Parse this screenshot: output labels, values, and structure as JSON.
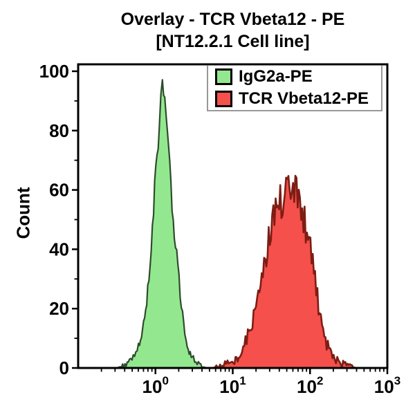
{
  "title": {
    "line1": "Overlay - TCR Vbeta12 - PE",
    "line2": "[NT12.2.1 Cell line]"
  },
  "axes": {
    "y": {
      "label": "Count",
      "min": 0,
      "max": 100,
      "major_ticks": [
        0,
        20,
        40,
        60,
        80,
        100
      ],
      "minor_ticks": [
        10,
        30,
        50,
        70,
        90
      ]
    },
    "x": {
      "scale": "log10",
      "base_label": "10",
      "major_tick_exponents": [
        0,
        1,
        2,
        3
      ],
      "min_exponent": -1,
      "max_exponent": 3,
      "minor_tick_multiples": [
        2,
        3,
        4,
        5,
        6,
        7,
        8,
        9
      ]
    }
  },
  "legend": {
    "position": "top-right",
    "entries": [
      {
        "label": "IgG2a-PE",
        "color": "#93e88f",
        "border": "#000000"
      },
      {
        "label": "TCR Vbeta12-PE",
        "color": "#f5504c",
        "border": "#000000"
      }
    ]
  },
  "colors": {
    "background": "#ffffff",
    "frame": "#000000",
    "green_fill": "#93e88f",
    "green_stroke": "#2e4b2c",
    "red_fill": "#f5504c",
    "red_stroke": "#7d1d14",
    "legend_border": "#989898"
  },
  "chart_data": {
    "type": "area",
    "subtype": "flow-cytometry-histogram-overlay",
    "title": "Overlay - TCR Vbeta12 - PE [NT12.2.1 Cell line]",
    "xlabel": "",
    "ylabel": "Count",
    "x_scale": "log10",
    "xlim": [
      0.1,
      1000
    ],
    "ylim": [
      0,
      100
    ],
    "grid": false,
    "legend_position": "top-right",
    "series": [
      {
        "name": "IgG2a-PE",
        "data_name": "histogram-igg2a-pe",
        "fill": "#93e88f",
        "stroke": "#2e4b2c",
        "stroke_width": 2.2,
        "noise": 0.45,
        "peak_x": 1.3,
        "peak_y": 95,
        "points_logx_count": [
          [
            -0.5,
            0
          ],
          [
            -0.44,
            0.6
          ],
          [
            -0.38,
            1.2
          ],
          [
            -0.32,
            2.5
          ],
          [
            -0.27,
            4
          ],
          [
            -0.22,
            7
          ],
          [
            -0.18,
            11
          ],
          [
            -0.14,
            17
          ],
          [
            -0.1,
            26
          ],
          [
            -0.07,
            36
          ],
          [
            -0.04,
            48
          ],
          [
            -0.01,
            60
          ],
          [
            0.02,
            72
          ],
          [
            0.05,
            82
          ],
          [
            0.07,
            88
          ],
          [
            0.09,
            93
          ],
          [
            0.105,
            95
          ],
          [
            0.12,
            87
          ],
          [
            0.14,
            80
          ],
          [
            0.17,
            71
          ],
          [
            0.2,
            61
          ],
          [
            0.23,
            51
          ],
          [
            0.26,
            42
          ],
          [
            0.29,
            33
          ],
          [
            0.32,
            25
          ],
          [
            0.35,
            18
          ],
          [
            0.38,
            12
          ],
          [
            0.41,
            8
          ],
          [
            0.45,
            5
          ],
          [
            0.49,
            3
          ],
          [
            0.54,
            1.5
          ],
          [
            0.6,
            0.6
          ],
          [
            0.66,
            0
          ]
        ]
      },
      {
        "name": "TCR Vbeta12-PE",
        "data_name": "histogram-tcr-vbeta12-pe",
        "fill": "#f5504c",
        "stroke": "#7d1d14",
        "stroke_width": 2.6,
        "noise": 0.75,
        "peak_x": 60,
        "peak_y": 63,
        "points_logx_count": [
          [
            0.74,
            0
          ],
          [
            0.82,
            0.6
          ],
          [
            0.9,
            1.2
          ],
          [
            0.98,
            2
          ],
          [
            1.05,
            3.5
          ],
          [
            1.12,
            6
          ],
          [
            1.18,
            9
          ],
          [
            1.24,
            14
          ],
          [
            1.3,
            21
          ],
          [
            1.36,
            29
          ],
          [
            1.42,
            37
          ],
          [
            1.48,
            45
          ],
          [
            1.54,
            51
          ],
          [
            1.6,
            55
          ],
          [
            1.66,
            58
          ],
          [
            1.72,
            60
          ],
          [
            1.78,
            63
          ],
          [
            1.84,
            58
          ],
          [
            1.9,
            53
          ],
          [
            1.96,
            46
          ],
          [
            2.02,
            37
          ],
          [
            2.08,
            26
          ],
          [
            2.14,
            16
          ],
          [
            2.2,
            9
          ],
          [
            2.26,
            5
          ],
          [
            2.32,
            3
          ],
          [
            2.4,
            1.5
          ],
          [
            2.5,
            0.6
          ],
          [
            2.6,
            0
          ]
        ]
      }
    ]
  }
}
